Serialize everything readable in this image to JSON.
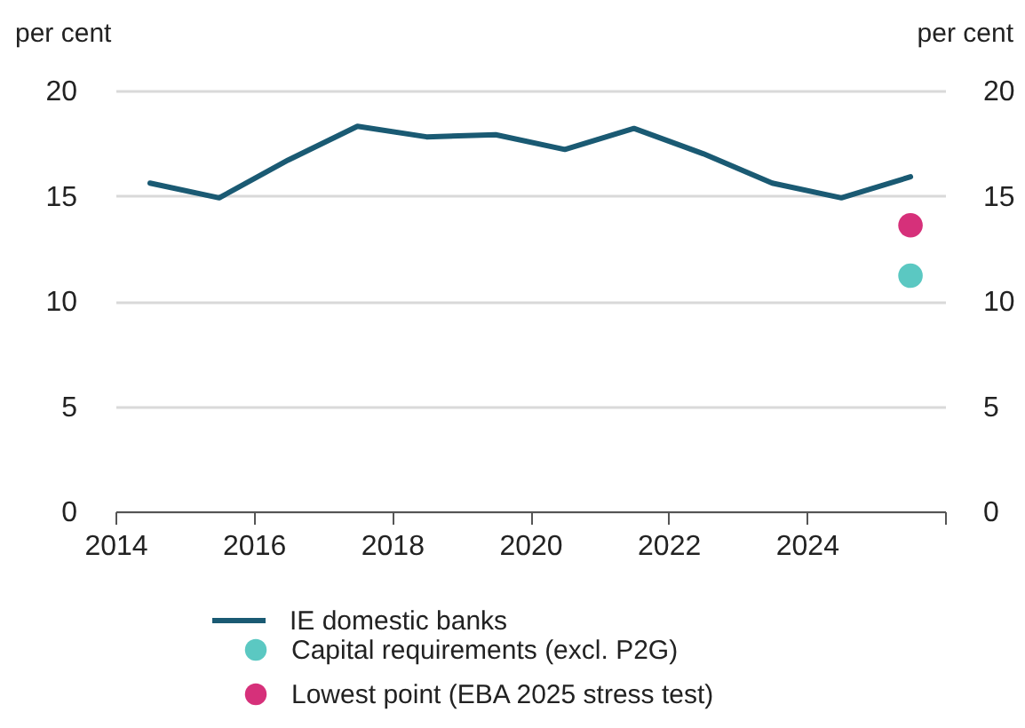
{
  "chart_data": {
    "type": "line",
    "ylabel": "per cent",
    "y2label": "per cent",
    "xlim": [
      2014,
      2026
    ],
    "xticks": [
      2014,
      2016,
      2018,
      2020,
      2022,
      2024,
      {
        "value": 2026,
        "label": null
      }
    ],
    "ylim": [
      0,
      20
    ],
    "yticks": [
      0,
      5,
      10,
      15,
      20
    ],
    "y2lim": [
      0,
      20
    ],
    "y2ticks": [
      0,
      5,
      10,
      15,
      20
    ],
    "grid": "y",
    "legend": "bottom",
    "series": [
      {
        "name": "IE domestic banks",
        "type": "line",
        "color": "#1a5a73",
        "x": [
          2014.5,
          2015.5,
          2016.5,
          2017.5,
          2018.5,
          2019.5,
          2020.5,
          2021.5,
          2022.5,
          2023.5,
          2024.5,
          2025.5
        ],
        "values": [
          15.6,
          14.9,
          16.7,
          18.3,
          17.8,
          17.9,
          17.2,
          18.2,
          17.0,
          15.6,
          14.9,
          15.9
        ]
      },
      {
        "name": "Capital requirements (excl. P2G)",
        "type": "scatter",
        "color": "#5bc8c2",
        "x": [
          2025.5
        ],
        "values": [
          11.2
        ]
      },
      {
        "name": "Lowest point (EBA 2025 stress test)",
        "type": "scatter",
        "color": "#d6307a",
        "x": [
          2025.5
        ],
        "values": [
          13.6
        ]
      }
    ]
  }
}
